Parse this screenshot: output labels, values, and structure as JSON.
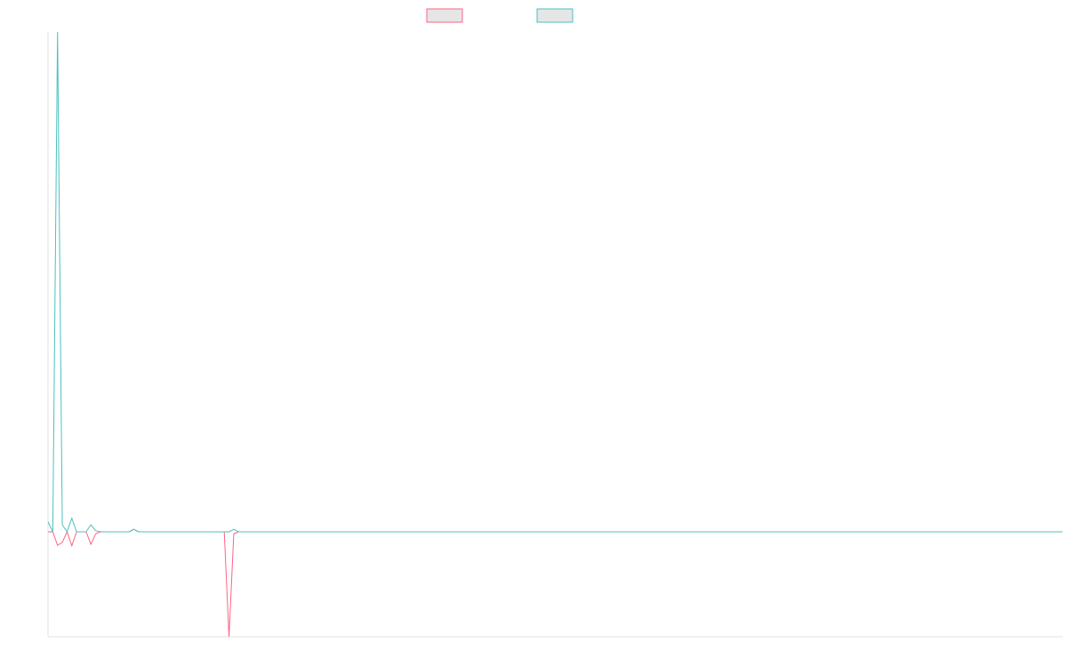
{
  "chart_data": {
    "type": "line",
    "ylim": [
      -21,
      100
    ],
    "grid": false,
    "series": [
      {
        "color": "#ff6384",
        "values": [
          0,
          0,
          -2.7,
          -2.1,
          0,
          -2.8,
          0,
          0,
          0,
          -2.5,
          -0.4,
          0,
          0,
          0,
          0,
          0,
          0,
          0,
          0.5,
          0,
          0,
          0,
          0,
          0,
          0,
          0,
          0,
          0,
          0,
          0,
          0,
          0,
          0,
          0,
          0,
          0,
          0,
          0,
          -21,
          -0.4,
          0,
          0,
          0,
          0,
          0,
          0,
          0,
          0,
          0,
          0,
          0,
          0,
          0,
          0,
          0,
          0,
          0,
          0,
          0,
          0,
          0,
          0,
          0,
          0,
          0,
          0,
          0,
          0,
          0,
          0,
          0,
          0,
          0,
          0,
          0,
          0,
          0,
          0,
          0,
          0,
          0,
          0,
          0,
          0,
          0,
          0,
          0,
          0,
          0,
          0,
          0,
          0,
          0,
          0,
          0,
          0,
          0,
          0,
          0,
          0,
          0,
          0,
          0,
          0,
          0,
          0,
          0,
          0,
          0,
          0,
          0,
          0,
          0,
          0,
          0,
          0,
          0,
          0,
          0,
          0,
          0,
          0,
          0,
          0,
          0,
          0,
          0,
          0,
          0,
          0,
          0,
          0,
          0,
          0,
          0,
          0,
          0,
          0,
          0,
          0,
          0,
          0,
          0,
          0,
          0,
          0,
          0,
          0,
          0,
          0,
          0,
          0,
          0,
          0,
          0,
          0,
          0,
          0,
          0,
          0,
          0,
          0,
          0,
          0,
          0,
          0,
          0,
          0,
          0,
          0,
          0,
          0,
          0,
          0,
          0,
          0,
          0,
          0,
          0,
          0,
          0,
          0,
          0,
          0,
          0,
          0,
          0,
          0,
          0,
          0,
          0,
          0,
          0,
          0,
          0,
          0,
          0,
          0,
          0,
          0,
          0,
          0,
          0,
          0,
          0,
          0,
          0,
          0,
          0,
          0,
          0,
          0,
          0,
          0
        ]
      },
      {
        "color": "#4bc0c0",
        "values": [
          2,
          0,
          100,
          1.4,
          0,
          2.7,
          0,
          0,
          0,
          1.4,
          0.2,
          0,
          0,
          0,
          0,
          0,
          0,
          0,
          0.5,
          0,
          0,
          0,
          0,
          0,
          0,
          0,
          0,
          0,
          0,
          0,
          0,
          0,
          0,
          0,
          0,
          0,
          0,
          0,
          0,
          0.5,
          0,
          0,
          0,
          0,
          0,
          0,
          0,
          0,
          0,
          0,
          0,
          0,
          0,
          0,
          0,
          0,
          0,
          0,
          0,
          0,
          0,
          0,
          0,
          0,
          0,
          0,
          0,
          0,
          0,
          0,
          0,
          0,
          0,
          0,
          0,
          0,
          0,
          0,
          0,
          0,
          0,
          0,
          0,
          0,
          0,
          0,
          0,
          0,
          0,
          0,
          0,
          0,
          0,
          0,
          0,
          0,
          0,
          0,
          0,
          0,
          0,
          0,
          0,
          0,
          0,
          0,
          0,
          0,
          0,
          0,
          0,
          0,
          0,
          0,
          0,
          0,
          0,
          0,
          0,
          0,
          0,
          0,
          0,
          0,
          0,
          0,
          0,
          0,
          0,
          0,
          0,
          0,
          0,
          0,
          0,
          0,
          0,
          0,
          0,
          0,
          0,
          0,
          0,
          0,
          0,
          0,
          0,
          0,
          0,
          0,
          0,
          0,
          0,
          0,
          0,
          0,
          0,
          0,
          0,
          0,
          0,
          0,
          0,
          0,
          0,
          0,
          0,
          0,
          0,
          0,
          0,
          0,
          0,
          0,
          0,
          0,
          0,
          0,
          0,
          0,
          0,
          0,
          0,
          0,
          0,
          0,
          0,
          0,
          0,
          0,
          0,
          0,
          0,
          0,
          0,
          0,
          0,
          0,
          0,
          0,
          0,
          0,
          0,
          0,
          0,
          0,
          0,
          0,
          0,
          0,
          0,
          0,
          0,
          0
        ]
      }
    ]
  }
}
